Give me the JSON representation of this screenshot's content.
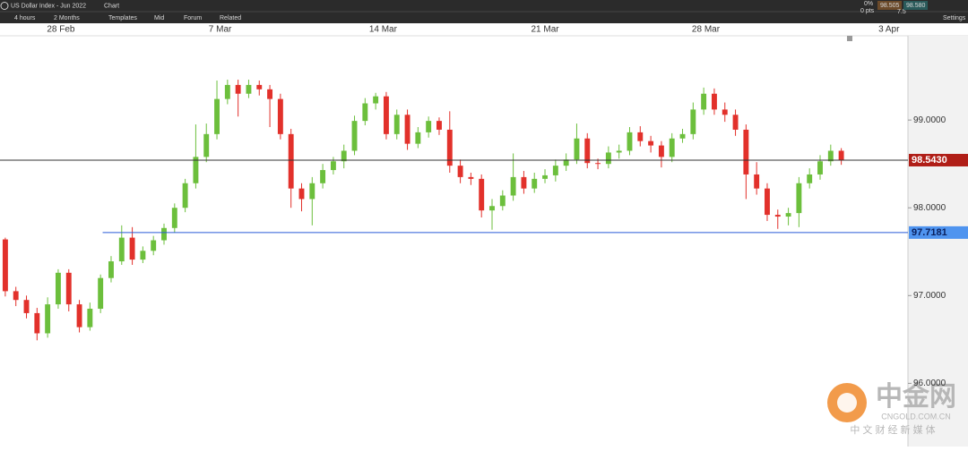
{
  "toolbar": {
    "instrument": "US Dollar Index - Jun 2022",
    "tab": "Chart",
    "timeframe": "4 hours",
    "range": "2 Months",
    "buttons": [
      "Templates",
      "Mid",
      "Forum",
      "Related"
    ],
    "change_pct": "0%",
    "change_pts": "0 pts",
    "sell": "98.505",
    "spread": "7.5",
    "buy": "98.580",
    "settings": "Settings"
  },
  "chart_data": {
    "type": "candlestick",
    "up_color": "#6cbf3c",
    "down_color": "#e2312b",
    "grid": false,
    "x": [
      0,
      1,
      2,
      3,
      4,
      5,
      6,
      7,
      8,
      9,
      10,
      11,
      12,
      13,
      14,
      15,
      16,
      17,
      18,
      19,
      20,
      21,
      22,
      23,
      24,
      25,
      26,
      27,
      28,
      29,
      30,
      31,
      32,
      33,
      34,
      35,
      36,
      37,
      38,
      39,
      40,
      41,
      42,
      43,
      44,
      45,
      46,
      47,
      48,
      49,
      50,
      51,
      52,
      53,
      54,
      55,
      56,
      57,
      58,
      59,
      60,
      61,
      62,
      63,
      64,
      65,
      66,
      67,
      68,
      69,
      70,
      71,
      72,
      73,
      74,
      75,
      76,
      77,
      78,
      79
    ],
    "open": [
      97.64,
      97.05,
      96.95,
      96.8,
      96.57,
      96.9,
      97.26,
      96.9,
      96.64,
      96.85,
      97.2,
      97.39,
      97.66,
      97.41,
      97.51,
      97.63,
      97.77,
      98.0,
      98.28,
      98.58,
      98.84,
      99.24,
      99.4,
      99.3,
      99.4,
      99.35,
      99.24,
      98.84,
      98.22,
      98.1,
      98.28,
      98.43,
      98.53,
      98.65,
      98.99,
      99.19,
      99.27,
      98.84,
      99.06,
      98.73,
      98.86,
      98.99,
      98.89,
      98.48,
      98.35,
      98.33,
      97.97,
      98.02,
      98.14,
      98.35,
      98.22,
      98.33,
      98.37,
      98.48,
      98.55,
      98.79,
      98.51,
      98.5,
      98.63,
      98.65,
      98.86,
      98.76,
      98.71,
      98.58,
      98.79,
      98.84,
      99.12,
      99.3,
      99.12,
      99.06,
      98.89,
      98.38,
      98.22,
      97.92,
      97.9,
      97.94,
      98.28,
      98.38,
      98.53,
      98.65
    ],
    "high": [
      97.66,
      97.1,
      97.0,
      96.86,
      96.98,
      97.3,
      97.3,
      96.95,
      96.92,
      97.24,
      97.45,
      97.8,
      97.78,
      97.56,
      97.68,
      97.82,
      98.05,
      98.33,
      98.95,
      98.96,
      99.45,
      99.46,
      99.46,
      99.46,
      99.45,
      99.4,
      99.3,
      98.9,
      98.28,
      98.35,
      98.5,
      98.58,
      98.72,
      99.05,
      99.25,
      99.31,
      99.32,
      99.12,
      99.12,
      98.92,
      99.04,
      99.03,
      99.1,
      98.55,
      98.4,
      98.38,
      98.1,
      98.2,
      98.62,
      98.42,
      98.4,
      98.44,
      98.55,
      98.62,
      98.96,
      98.85,
      98.56,
      98.7,
      98.72,
      98.92,
      98.93,
      98.82,
      98.76,
      98.85,
      98.9,
      99.2,
      99.37,
      99.36,
      99.2,
      99.12,
      98.95,
      98.52,
      98.28,
      97.98,
      98.0,
      98.35,
      98.45,
      98.6,
      98.72,
      98.68
    ],
    "low": [
      96.99,
      96.88,
      96.74,
      96.49,
      96.52,
      96.85,
      96.82,
      96.58,
      96.6,
      96.8,
      97.15,
      97.35,
      97.35,
      97.37,
      97.46,
      97.58,
      97.72,
      97.95,
      98.22,
      98.52,
      98.78,
      99.18,
      99.04,
      99.25,
      99.28,
      98.92,
      98.78,
      98.0,
      97.96,
      97.8,
      98.22,
      98.38,
      98.45,
      98.6,
      98.94,
      99.12,
      98.78,
      98.78,
      98.66,
      98.68,
      98.8,
      98.83,
      98.4,
      98.28,
      98.26,
      97.89,
      97.75,
      97.97,
      98.08,
      98.16,
      98.17,
      98.28,
      98.3,
      98.42,
      98.5,
      98.45,
      98.44,
      98.45,
      98.56,
      98.6,
      98.7,
      98.63,
      98.46,
      98.52,
      98.74,
      98.78,
      99.06,
      99.06,
      98.98,
      98.82,
      98.1,
      98.15,
      97.85,
      97.76,
      97.8,
      97.78,
      98.22,
      98.32,
      98.48,
      98.49
    ],
    "close": [
      97.05,
      96.95,
      96.8,
      96.57,
      96.9,
      97.26,
      96.9,
      96.64,
      96.85,
      97.2,
      97.39,
      97.66,
      97.41,
      97.51,
      97.63,
      97.77,
      98.0,
      98.28,
      98.58,
      98.84,
      99.24,
      99.4,
      99.3,
      99.4,
      99.35,
      99.24,
      98.84,
      98.22,
      98.1,
      98.28,
      98.43,
      98.53,
      98.65,
      98.99,
      99.19,
      99.27,
      98.84,
      99.06,
      98.73,
      98.86,
      98.99,
      98.89,
      98.48,
      98.35,
      98.33,
      97.97,
      98.02,
      98.14,
      98.35,
      98.22,
      98.33,
      98.37,
      98.48,
      98.55,
      98.79,
      98.51,
      98.5,
      98.63,
      98.65,
      98.86,
      98.76,
      98.71,
      98.58,
      98.79,
      98.84,
      99.12,
      99.3,
      99.12,
      99.06,
      98.89,
      98.38,
      98.22,
      97.92,
      97.9,
      97.94,
      98.28,
      98.38,
      98.53,
      98.65,
      98.54
    ],
    "xlim": [
      -0.5,
      85.3
    ],
    "xticks": [
      {
        "value": 5.25,
        "label": "28 Feb"
      },
      {
        "value": 20.3,
        "label": "7 Mar"
      },
      {
        "value": 35.7,
        "label": "14 Mar"
      },
      {
        "value": 51.0,
        "label": "21 Mar"
      },
      {
        "value": 66.2,
        "label": "28 Mar"
      },
      {
        "value": 83.5,
        "label": "3 Apr"
      }
    ],
    "ylim": [
      95.28,
      99.96
    ],
    "yticks": [
      {
        "value": 96,
        "label": "96.0000"
      },
      {
        "value": 97,
        "label": "97.0000"
      },
      {
        "value": 98,
        "label": "98.0000"
      },
      {
        "value": 99,
        "label": "99.0000"
      }
    ],
    "hlines": [
      {
        "value": 98.543,
        "label": "98.5430",
        "color": "#333333",
        "label_bg": "#b01e17",
        "label_color": "#ffffff",
        "x_start": -0.5
      },
      {
        "value": 97.7181,
        "label": "97.7181",
        "color": "#2a5bd7",
        "label_bg": "#4f94ef",
        "label_color": "#0a1f5c",
        "x_start": 9.2
      }
    ]
  },
  "watermark": {
    "brand": "中金网",
    "domain": "CNGOLD.COM.CN",
    "slogan": "中 文 财 经 新 媒 体"
  }
}
